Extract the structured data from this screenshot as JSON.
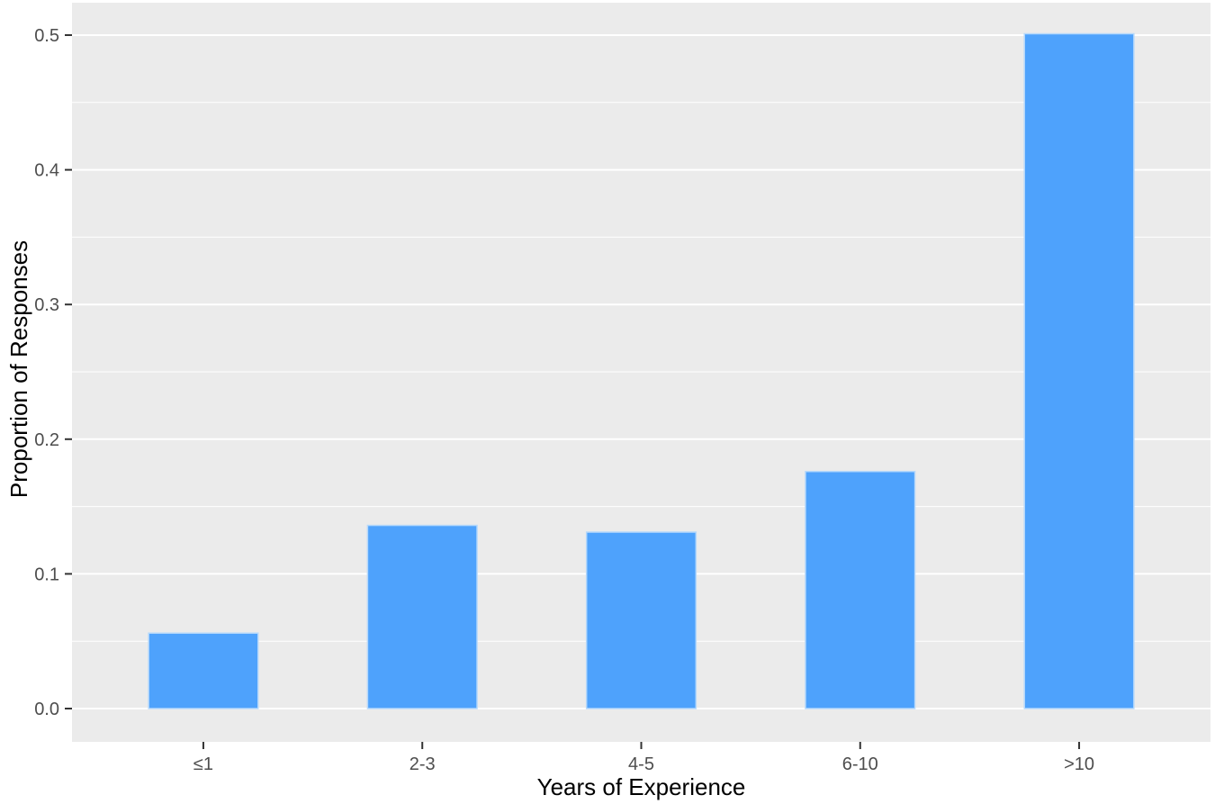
{
  "chart_data": {
    "type": "bar",
    "title": "",
    "xlabel": "Years of Experience",
    "ylabel": "Proportion of Responses",
    "categories": [
      "≤1",
      "2-3",
      "4-5",
      "6-10",
      ">10"
    ],
    "values": [
      0.056,
      0.136,
      0.131,
      0.176,
      0.501
    ],
    "ylim": [
      0,
      0.525
    ],
    "y_ticks": [
      {
        "value": 0.0,
        "label": "0.0"
      },
      {
        "value": 0.1,
        "label": "0.1"
      },
      {
        "value": 0.2,
        "label": "0.2"
      },
      {
        "value": 0.3,
        "label": "0.3"
      },
      {
        "value": 0.4,
        "label": "0.4"
      },
      {
        "value": 0.5,
        "label": "0.5"
      }
    ],
    "y_minor_ticks": [
      0.05,
      0.15,
      0.25,
      0.35,
      0.45
    ],
    "legend": null,
    "grid": "on",
    "style": {
      "panel_bg": "#EBEBEB",
      "grid_color": "#FFFFFF",
      "bar_fill": "#4EA2FC",
      "bar_edge": "#B5D8FB",
      "tick_mark_color": "#333333",
      "tick_label_color": "#4D4D4D",
      "axis_title_color": "#000000"
    }
  }
}
